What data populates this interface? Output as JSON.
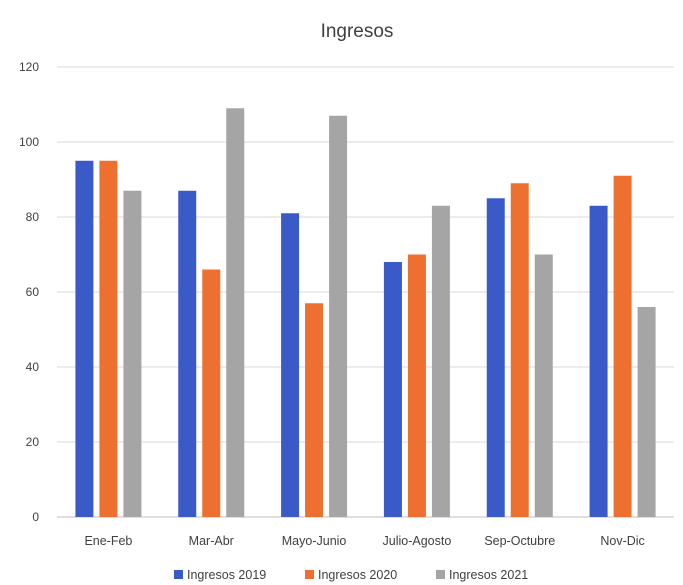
{
  "chart_data": {
    "type": "bar",
    "title": "Ingresos",
    "xlabel": "",
    "ylabel": "",
    "categories": [
      "Ene-Feb",
      "Mar-Abr",
      "Mayo-Junio",
      "Julio-Agosto",
      "Sep-Octubre",
      "Nov-Dic"
    ],
    "series": [
      {
        "name": "Ingresos 2019",
        "color": "#3a5bc7",
        "values": [
          95,
          87,
          81,
          68,
          85,
          83
        ]
      },
      {
        "name": "Ingresos 2020",
        "color": "#ed7031",
        "values": [
          95,
          66,
          57,
          70,
          89,
          91
        ]
      },
      {
        "name": "Ingresos 2021",
        "color": "#a5a5a5",
        "values": [
          87,
          109,
          107,
          83,
          70,
          56
        ]
      }
    ],
    "ylim": [
      0,
      120
    ],
    "yticks": [
      "0",
      "20",
      "40",
      "60",
      "80",
      "100",
      "120"
    ],
    "grid": true,
    "legend_position": "bottom"
  }
}
